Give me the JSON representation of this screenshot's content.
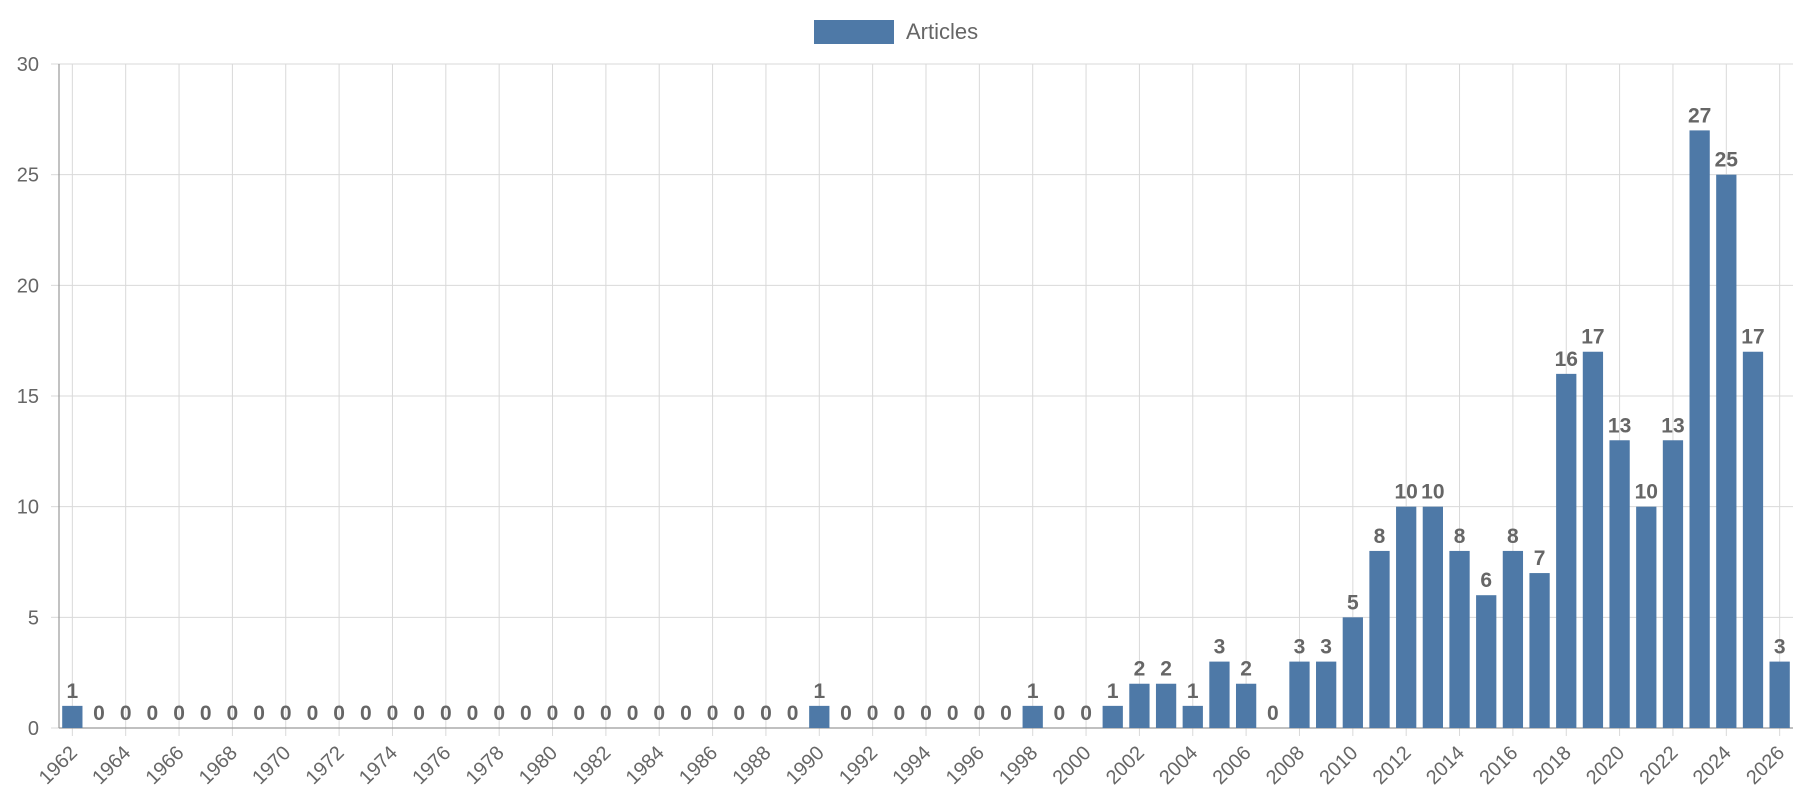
{
  "chart_data": {
    "type": "bar",
    "legend": {
      "position": "top-center",
      "entries": [
        {
          "name": "Articles",
          "color": "#4e79a7"
        }
      ]
    },
    "series": [
      {
        "name": "Articles",
        "color": "#4e79a7"
      }
    ],
    "x": [
      1962,
      1963,
      1964,
      1965,
      1966,
      1967,
      1968,
      1969,
      1970,
      1971,
      1972,
      1973,
      1974,
      1975,
      1976,
      1977,
      1978,
      1979,
      1980,
      1981,
      1982,
      1983,
      1984,
      1985,
      1986,
      1987,
      1988,
      1989,
      1990,
      1991,
      1992,
      1993,
      1994,
      1995,
      1996,
      1997,
      1998,
      1999,
      2000,
      2001,
      2002,
      2003,
      2004,
      2005,
      2006,
      2007,
      2008,
      2009,
      2010,
      2011,
      2012,
      2013,
      2014,
      2015,
      2016,
      2017,
      2018,
      2019,
      2020,
      2021,
      2022,
      2023,
      2024,
      2025,
      2026
    ],
    "values": [
      1,
      0,
      0,
      0,
      0,
      0,
      0,
      0,
      0,
      0,
      0,
      0,
      0,
      0,
      0,
      0,
      0,
      0,
      0,
      0,
      0,
      0,
      0,
      0,
      0,
      0,
      0,
      0,
      1,
      0,
      0,
      0,
      0,
      0,
      0,
      0,
      1,
      0,
      0,
      1,
      2,
      2,
      1,
      3,
      2,
      0,
      3,
      3,
      5,
      8,
      10,
      10,
      8,
      6,
      8,
      7,
      16,
      17,
      13,
      10,
      13,
      27,
      25,
      17,
      3
    ],
    "x_tick_labels": [
      "1962",
      "1964",
      "1966",
      "1968",
      "1970",
      "1972",
      "1974",
      "1976",
      "1978",
      "1980",
      "1982",
      "1984",
      "1986",
      "1988",
      "1990",
      "1992",
      "1994",
      "1996",
      "1998",
      "2000",
      "2002",
      "2004",
      "2006",
      "2008",
      "2010",
      "2012",
      "2014",
      "2016",
      "2018",
      "2020",
      "2022",
      "2024",
      "2026"
    ],
    "y_tick_labels": [
      "0",
      "5",
      "10",
      "15",
      "20",
      "25",
      "30"
    ],
    "ylim": [
      0,
      30
    ],
    "y_ticks": [
      0,
      5,
      10,
      15,
      20,
      25,
      30
    ],
    "grid": true,
    "data_labels": true,
    "title": "",
    "xlabel": "",
    "ylabel": ""
  }
}
